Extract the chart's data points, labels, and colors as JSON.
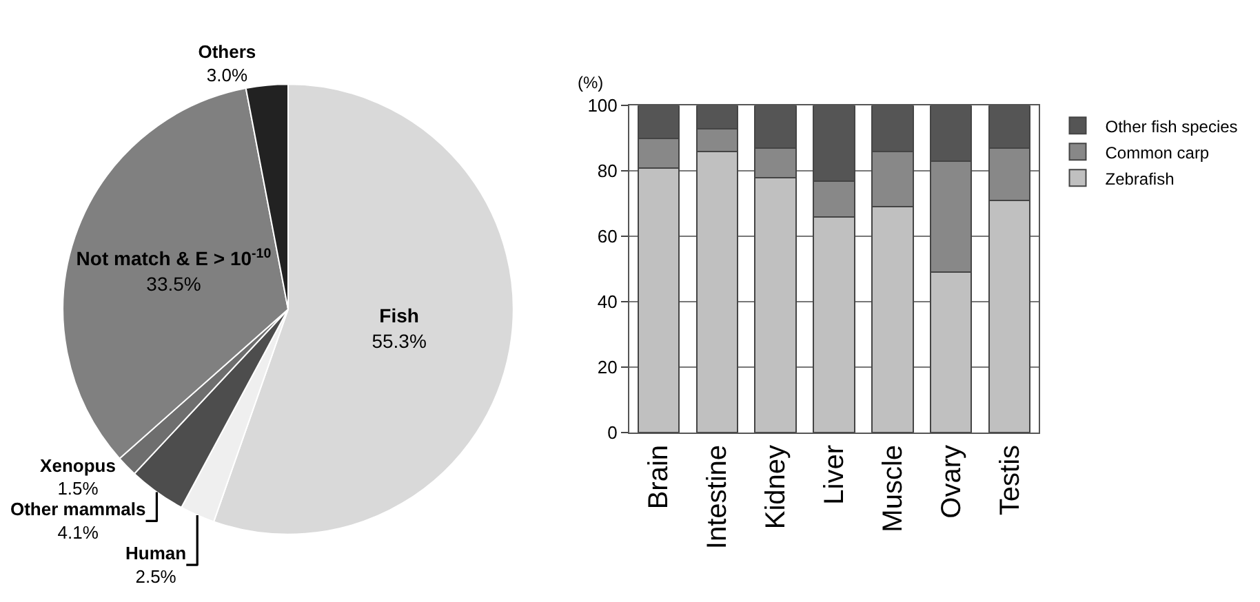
{
  "chart_data": [
    {
      "type": "pie",
      "categories": [
        "Fish",
        "Human",
        "Other mammals",
        "Xenopus",
        "Not match & E > 10$^{-10}$",
        "Others"
      ],
      "values": [
        55.3,
        2.5,
        4.1,
        1.5,
        33.5,
        3.0
      ],
      "colors": [
        "#d9d9d9",
        "#efefef",
        "#4d4d4d",
        "#6e6e6e",
        "#808080",
        "#222222"
      ],
      "value_labels": [
        "55.3%",
        "2.5%",
        "4.1%",
        "1.5%",
        "33.5%",
        "3.0%"
      ]
    },
    {
      "type": "bar",
      "stacked": true,
      "categories": [
        "Brain",
        "Intestine",
        "Kidney",
        "Liver",
        "Muscle",
        "Ovary",
        "Testis"
      ],
      "ylabel": "(%)",
      "ylim": [
        0,
        100
      ],
      "yticks": [
        0,
        20,
        40,
        60,
        80,
        100
      ],
      "grid": "y",
      "legend": "right",
      "series": [
        {
          "name": "Zebrafish",
          "color": "#c0c0c0",
          "values": [
            81,
            86,
            78,
            66,
            69,
            49,
            71
          ]
        },
        {
          "name": "Common carp",
          "color": "#888888",
          "values": [
            9,
            7,
            9,
            11,
            17,
            34,
            16
          ]
        },
        {
          "name": "Other fish species",
          "color": "#555555",
          "values": [
            10,
            7,
            13,
            23,
            14,
            17,
            13
          ]
        }
      ]
    }
  ]
}
